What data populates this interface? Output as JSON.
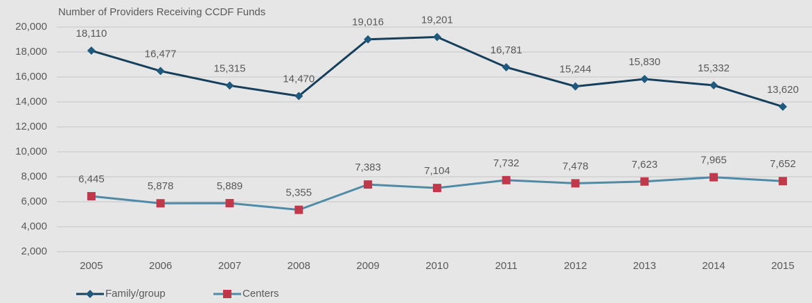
{
  "chart_data": {
    "type": "line",
    "title": "Number of Providers Receiving CCDF Funds",
    "categories": [
      "2005",
      "2006",
      "2007",
      "2008",
      "2009",
      "2010",
      "2011",
      "2012",
      "2013",
      "2014",
      "2015"
    ],
    "series": [
      {
        "name": "Family/group",
        "color": "#163f5c",
        "marker": "diamond",
        "marker_color": "#1f5a7e",
        "values": [
          18110,
          16477,
          15315,
          14470,
          19016,
          19201,
          16781,
          15244,
          15830,
          15332,
          13620
        ],
        "value_labels": [
          "18,110",
          "16,477",
          "15,315",
          "14,470",
          "19,016",
          "19,201",
          "16,781",
          "15,244",
          "15,830",
          "15,332",
          "13,620"
        ]
      },
      {
        "name": "Centers",
        "color": "#4f8aa6",
        "marker": "square",
        "marker_color": "#c0394b",
        "values": [
          6445,
          5878,
          5889,
          5355,
          7383,
          7104,
          7732,
          7478,
          7623,
          7965,
          7652
        ],
        "value_labels": [
          "6,445",
          "5,878",
          "5,889",
          "5,355",
          "7,383",
          "7,104",
          "7,732",
          "7,478",
          "7,623",
          "7,965",
          "7,652"
        ]
      }
    ],
    "ylim": [
      2000,
      20000
    ],
    "yticks": [
      {
        "value": 2000,
        "label": "2,000"
      },
      {
        "value": 4000,
        "label": "4,000"
      },
      {
        "value": 6000,
        "label": "6,000"
      },
      {
        "value": 8000,
        "label": "8,000"
      },
      {
        "value": 10000,
        "label": "10,000"
      },
      {
        "value": 12000,
        "label": "12,000"
      },
      {
        "value": 14000,
        "label": "14,000"
      },
      {
        "value": 16000,
        "label": "16,000"
      },
      {
        "value": 18000,
        "label": "18,000"
      },
      {
        "value": 20000,
        "label": "20,000"
      }
    ],
    "grid": true,
    "legend": "bottom-left"
  }
}
